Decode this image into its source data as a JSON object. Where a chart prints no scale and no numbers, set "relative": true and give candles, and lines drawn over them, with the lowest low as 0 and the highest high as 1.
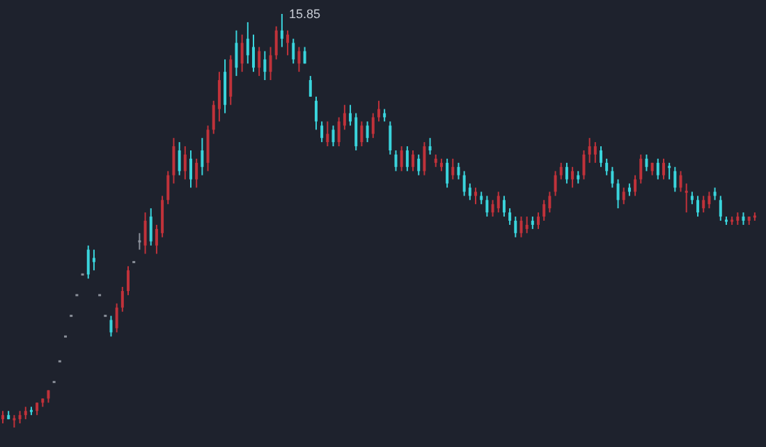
{
  "chart_data": {
    "type": "candlestick",
    "relative": true,
    "annotations": [
      "15.85"
    ],
    "categories": [
      null,
      null,
      null,
      null,
      null,
      null,
      null,
      null,
      null,
      null,
      null,
      null,
      null,
      null,
      null,
      null,
      null,
      null,
      null,
      null,
      null,
      null,
      null,
      null,
      null,
      null,
      null,
      null,
      null,
      null,
      null,
      null,
      null,
      null,
      null,
      null,
      null,
      null,
      null,
      null,
      null,
      null,
      null,
      null,
      null,
      null,
      null,
      null,
      null,
      null,
      null,
      null,
      null,
      null,
      null,
      null,
      null,
      null,
      null,
      null,
      null,
      null,
      null,
      null,
      null,
      null,
      null,
      null,
      null,
      null,
      null,
      null,
      null,
      null,
      null,
      null,
      null,
      null,
      null,
      null,
      null,
      null,
      null,
      null,
      null,
      null,
      null,
      null,
      null,
      null,
      null,
      null,
      null,
      null,
      null,
      null,
      null,
      null,
      null,
      null,
      null,
      null,
      null,
      null,
      null,
      null,
      null,
      null,
      null,
      null,
      null,
      null,
      null,
      null,
      null,
      null,
      null,
      null,
      null,
      null,
      null,
      null,
      null,
      null,
      null,
      null,
      null,
      null,
      null,
      null,
      null,
      null,
      null
    ],
    "ohlc": [
      [
        0.02,
        0.04,
        0.01,
        0.03
      ],
      [
        0.03,
        0.04,
        0.02,
        0.02
      ],
      [
        0.02,
        0.03,
        0.0,
        0.02
      ],
      [
        0.02,
        0.04,
        0.01,
        0.03
      ],
      [
        0.03,
        0.05,
        0.02,
        0.04
      ],
      [
        0.04,
        0.05,
        0.03,
        0.04
      ],
      [
        0.04,
        0.06,
        0.03,
        0.06
      ],
      [
        0.06,
        0.07,
        0.05,
        0.07
      ],
      [
        0.07,
        0.09,
        0.06,
        0.09
      ],
      [
        0.11,
        0.11,
        0.11,
        0.11
      ],
      [
        0.16,
        0.16,
        0.16,
        0.16
      ],
      [
        0.22,
        0.22,
        0.22,
        0.22
      ],
      [
        0.27,
        0.27,
        0.27,
        0.27
      ],
      [
        0.32,
        0.32,
        0.32,
        0.32
      ],
      [
        0.37,
        0.37,
        0.37,
        0.37
      ],
      [
        0.43,
        0.44,
        0.36,
        0.37
      ],
      [
        0.41,
        0.43,
        0.38,
        0.4
      ],
      [
        0.32,
        0.32,
        0.32,
        0.32
      ],
      [
        0.27,
        0.27,
        0.27,
        0.27
      ],
      [
        0.26,
        0.27,
        0.22,
        0.23
      ],
      [
        0.24,
        0.3,
        0.23,
        0.29
      ],
      [
        0.29,
        0.34,
        0.28,
        0.33
      ],
      [
        0.33,
        0.39,
        0.32,
        0.38
      ],
      [
        0.4,
        0.4,
        0.4,
        0.4
      ],
      [
        0.45,
        0.47,
        0.43,
        0.45
      ],
      [
        0.44,
        0.52,
        0.42,
        0.5
      ],
      [
        0.51,
        0.53,
        0.44,
        0.45
      ],
      [
        0.44,
        0.49,
        0.42,
        0.48
      ],
      [
        0.47,
        0.56,
        0.46,
        0.55
      ],
      [
        0.55,
        0.62,
        0.54,
        0.61
      ],
      [
        0.61,
        0.7,
        0.59,
        0.68
      ],
      [
        0.67,
        0.69,
        0.61,
        0.62
      ],
      [
        0.62,
        0.68,
        0.6,
        0.66
      ],
      [
        0.65,
        0.67,
        0.58,
        0.6
      ],
      [
        0.6,
        0.65,
        0.58,
        0.64
      ],
      [
        0.67,
        0.7,
        0.61,
        0.63
      ],
      [
        0.64,
        0.73,
        0.62,
        0.72
      ],
      [
        0.72,
        0.79,
        0.71,
        0.78
      ],
      [
        0.77,
        0.86,
        0.74,
        0.84
      ],
      [
        0.86,
        0.89,
        0.76,
        0.78
      ],
      [
        0.8,
        0.9,
        0.78,
        0.89
      ],
      [
        0.93,
        0.96,
        0.85,
        0.87
      ],
      [
        0.88,
        0.95,
        0.86,
        0.93
      ],
      [
        0.94,
        0.98,
        0.88,
        0.9
      ],
      [
        0.92,
        0.95,
        0.86,
        0.87
      ],
      [
        0.87,
        0.92,
        0.85,
        0.91
      ],
      [
        0.89,
        0.91,
        0.84,
        0.86
      ],
      [
        0.86,
        0.92,
        0.84,
        0.9
      ],
      [
        0.9,
        0.97,
        0.89,
        0.96
      ],
      [
        0.96,
        1.0,
        0.92,
        0.94
      ],
      [
        0.93,
        0.96,
        0.9,
        0.95
      ],
      [
        0.93,
        0.94,
        0.88,
        0.89
      ],
      [
        0.88,
        0.92,
        0.86,
        0.91
      ],
      [
        0.91,
        0.92,
        0.88,
        0.88
      ],
      [
        0.84,
        0.85,
        0.8,
        0.8
      ],
      [
        0.79,
        0.8,
        0.72,
        0.74
      ],
      [
        0.73,
        0.74,
        0.69,
        0.7
      ],
      [
        0.69,
        0.74,
        0.68,
        0.71
      ],
      [
        0.72,
        0.73,
        0.68,
        0.69
      ],
      [
        0.69,
        0.75,
        0.68,
        0.74
      ],
      [
        0.73,
        0.78,
        0.72,
        0.76
      ],
      [
        0.76,
        0.78,
        0.73,
        0.74
      ],
      [
        0.75,
        0.76,
        0.67,
        0.68
      ],
      [
        0.69,
        0.74,
        0.68,
        0.73
      ],
      [
        0.73,
        0.74,
        0.69,
        0.7
      ],
      [
        0.71,
        0.76,
        0.7,
        0.75
      ],
      [
        0.75,
        0.79,
        0.74,
        0.77
      ],
      [
        0.76,
        0.77,
        0.74,
        0.75
      ],
      [
        0.73,
        0.74,
        0.66,
        0.67
      ],
      [
        0.66,
        0.67,
        0.62,
        0.63
      ],
      [
        0.63,
        0.68,
        0.62,
        0.67
      ],
      [
        0.67,
        0.68,
        0.62,
        0.63
      ],
      [
        0.63,
        0.67,
        0.62,
        0.66
      ],
      [
        0.65,
        0.66,
        0.61,
        0.62
      ],
      [
        0.62,
        0.69,
        0.61,
        0.68
      ],
      [
        0.68,
        0.7,
        0.66,
        0.67
      ],
      [
        0.64,
        0.66,
        0.63,
        0.65
      ],
      [
        0.63,
        0.65,
        0.62,
        0.64
      ],
      [
        0.64,
        0.65,
        0.58,
        0.59
      ],
      [
        0.61,
        0.65,
        0.6,
        0.63
      ],
      [
        0.63,
        0.64,
        0.6,
        0.61
      ],
      [
        0.61,
        0.62,
        0.56,
        0.57
      ],
      [
        0.58,
        0.59,
        0.55,
        0.56
      ],
      [
        0.56,
        0.58,
        0.54,
        0.57
      ],
      [
        0.56,
        0.57,
        0.54,
        0.55
      ],
      [
        0.55,
        0.56,
        0.51,
        0.52
      ],
      [
        0.52,
        0.55,
        0.51,
        0.54
      ],
      [
        0.53,
        0.57,
        0.52,
        0.56
      ],
      [
        0.55,
        0.56,
        0.51,
        0.52
      ],
      [
        0.52,
        0.53,
        0.49,
        0.5
      ],
      [
        0.5,
        0.51,
        0.46,
        0.47
      ],
      [
        0.47,
        0.51,
        0.46,
        0.5
      ],
      [
        0.48,
        0.51,
        0.47,
        0.49
      ],
      [
        0.5,
        0.51,
        0.48,
        0.49
      ],
      [
        0.49,
        0.52,
        0.48,
        0.51
      ],
      [
        0.51,
        0.55,
        0.5,
        0.54
      ],
      [
        0.53,
        0.57,
        0.52,
        0.56
      ],
      [
        0.57,
        0.62,
        0.56,
        0.61
      ],
      [
        0.61,
        0.64,
        0.6,
        0.63
      ],
      [
        0.63,
        0.64,
        0.59,
        0.6
      ],
      [
        0.6,
        0.63,
        0.58,
        0.62
      ],
      [
        0.61,
        0.62,
        0.59,
        0.6
      ],
      [
        0.61,
        0.67,
        0.6,
        0.66
      ],
      [
        0.66,
        0.7,
        0.64,
        0.68
      ],
      [
        0.66,
        0.69,
        0.64,
        0.68
      ],
      [
        0.67,
        0.68,
        0.63,
        0.64
      ],
      [
        0.64,
        0.65,
        0.61,
        0.62
      ],
      [
        0.62,
        0.63,
        0.58,
        0.59
      ],
      [
        0.59,
        0.6,
        0.53,
        0.55
      ],
      [
        0.55,
        0.58,
        0.54,
        0.57
      ],
      [
        0.58,
        0.59,
        0.56,
        0.57
      ],
      [
        0.57,
        0.61,
        0.56,
        0.6
      ],
      [
        0.6,
        0.66,
        0.59,
        0.65
      ],
      [
        0.65,
        0.66,
        0.62,
        0.63
      ],
      [
        0.62,
        0.64,
        0.61,
        0.64
      ],
      [
        0.64,
        0.65,
        0.6,
        0.61
      ],
      [
        0.61,
        0.65,
        0.6,
        0.64
      ],
      [
        0.63,
        0.64,
        0.6,
        0.63
      ],
      [
        0.62,
        0.63,
        0.57,
        0.58
      ],
      [
        0.58,
        0.62,
        0.57,
        0.61
      ],
      [
        0.57,
        0.59,
        0.52,
        0.57
      ],
      [
        0.56,
        0.57,
        0.54,
        0.55
      ],
      [
        0.55,
        0.56,
        0.51,
        0.52
      ],
      [
        0.53,
        0.56,
        0.52,
        0.55
      ],
      [
        0.54,
        0.57,
        0.53,
        0.56
      ],
      [
        0.57,
        0.58,
        0.55,
        0.56
      ],
      [
        0.55,
        0.56,
        0.5,
        0.51
      ],
      [
        0.5,
        0.51,
        0.49,
        0.5
      ],
      [
        0.5,
        0.51,
        0.49,
        0.5
      ],
      [
        0.5,
        0.52,
        0.49,
        0.51
      ],
      [
        0.51,
        0.52,
        0.49,
        0.5
      ],
      [
        0.5,
        0.51,
        0.49,
        0.51
      ],
      [
        0.51,
        0.52,
        0.5,
        0.51
      ]
    ],
    "colors": [
      "#c0323a",
      "#3ad4dc",
      "#c0323a",
      "#c0323a",
      "#c0323a",
      "#3ad4dc",
      "#c0323a",
      "#c0323a",
      "#c0323a",
      "#8a8f99",
      "#8a8f99",
      "#8a8f99",
      "#8a8f99",
      "#8a8f99",
      "#8a8f99",
      "#3ad4dc",
      "#3ad4dc",
      "#8a8f99",
      "#8a8f99",
      "#3ad4dc",
      "#c0323a",
      "#c0323a",
      "#c0323a",
      "#8a8f99",
      "#8a8f99",
      "#c0323a",
      "#3ad4dc",
      "#c0323a",
      "#c0323a",
      "#c0323a",
      "#c0323a",
      "#3ad4dc",
      "#c0323a",
      "#3ad4dc",
      "#c0323a",
      "#3ad4dc",
      "#c0323a",
      "#c0323a",
      "#c0323a",
      "#3ad4dc",
      "#c0323a",
      "#3ad4dc",
      "#c0323a",
      "#3ad4dc",
      "#3ad4dc",
      "#c0323a",
      "#3ad4dc",
      "#c0323a",
      "#c0323a",
      "#3ad4dc",
      "#c0323a",
      "#3ad4dc",
      "#c0323a",
      "#3ad4dc",
      "#3ad4dc",
      "#3ad4dc",
      "#3ad4dc",
      "#c0323a",
      "#3ad4dc",
      "#c0323a",
      "#c0323a",
      "#3ad4dc",
      "#3ad4dc",
      "#c0323a",
      "#3ad4dc",
      "#c0323a",
      "#c0323a",
      "#3ad4dc",
      "#3ad4dc",
      "#3ad4dc",
      "#c0323a",
      "#3ad4dc",
      "#c0323a",
      "#3ad4dc",
      "#c0323a",
      "#3ad4dc",
      "#c0323a",
      "#c0323a",
      "#3ad4dc",
      "#c0323a",
      "#3ad4dc",
      "#3ad4dc",
      "#3ad4dc",
      "#c0323a",
      "#3ad4dc",
      "#3ad4dc",
      "#c0323a",
      "#c0323a",
      "#3ad4dc",
      "#3ad4dc",
      "#3ad4dc",
      "#c0323a",
      "#c0323a",
      "#3ad4dc",
      "#c0323a",
      "#c0323a",
      "#c0323a",
      "#c0323a",
      "#c0323a",
      "#3ad4dc",
      "#c0323a",
      "#3ad4dc",
      "#c0323a",
      "#c0323a",
      "#c0323a",
      "#3ad4dc",
      "#3ad4dc",
      "#3ad4dc",
      "#3ad4dc",
      "#c0323a",
      "#3ad4dc",
      "#c0323a",
      "#c0323a",
      "#3ad4dc",
      "#c0323a",
      "#3ad4dc",
      "#c0323a",
      "#3ad4dc",
      "#3ad4dc",
      "#c0323a",
      "#c0323a",
      "#3ad4dc",
      "#3ad4dc",
      "#c0323a",
      "#c0323a",
      "#3ad4dc",
      "#3ad4dc",
      "#3ad4dc",
      "#c0323a",
      "#c0323a",
      "#3ad4dc",
      "#c0323a",
      "#c0323a"
    ]
  }
}
